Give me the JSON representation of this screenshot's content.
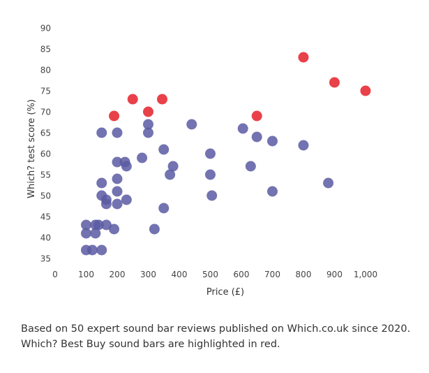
{
  "chart_data": {
    "type": "scatter",
    "xlabel": "Price (£)",
    "ylabel": "Which? test score (%)",
    "xlim": [
      0,
      1000
    ],
    "ylim": [
      35,
      90
    ],
    "x_ticks": [
      0,
      100,
      200,
      300,
      400,
      500,
      600,
      700,
      800,
      900,
      1000
    ],
    "x_tick_labels": [
      "0",
      "100",
      "200",
      "300",
      "400",
      "500",
      "600",
      "700",
      "800",
      "900",
      "1,000"
    ],
    "y_ticks": [
      35,
      40,
      45,
      50,
      55,
      60,
      65,
      70,
      75,
      80,
      85,
      90
    ],
    "y_tick_labels": [
      "35",
      "40",
      "45",
      "50",
      "55",
      "60",
      "65",
      "70",
      "75",
      "80",
      "85",
      "90"
    ],
    "grid": false,
    "series": [
      {
        "color": "#5b5ba3",
        "points": [
          [
            100,
            43
          ],
          [
            100,
            41
          ],
          [
            100,
            37
          ],
          [
            120,
            37
          ],
          [
            130,
            43
          ],
          [
            130,
            41
          ],
          [
            140,
            43
          ],
          [
            150,
            37
          ],
          [
            165,
            43
          ],
          [
            150,
            50
          ],
          [
            150,
            53
          ],
          [
            165,
            49
          ],
          [
            165,
            48
          ],
          [
            190,
            42
          ],
          [
            200,
            48
          ],
          [
            200,
            51
          ],
          [
            200,
            54
          ],
          [
            200,
            58
          ],
          [
            230,
            49
          ],
          [
            225,
            58
          ],
          [
            230,
            57
          ],
          [
            150,
            65
          ],
          [
            200,
            65
          ],
          [
            280,
            59
          ],
          [
            300,
            67
          ],
          [
            300,
            65
          ],
          [
            320,
            42
          ],
          [
            350,
            47
          ],
          [
            350,
            61
          ],
          [
            370,
            55
          ],
          [
            380,
            57
          ],
          [
            440,
            67
          ],
          [
            500,
            60
          ],
          [
            500,
            55
          ],
          [
            505,
            50
          ],
          [
            605,
            66
          ],
          [
            630,
            57
          ],
          [
            650,
            64
          ],
          [
            700,
            63
          ],
          [
            700,
            51
          ],
          [
            800,
            62
          ],
          [
            880,
            53
          ]
        ]
      },
      {
        "color": "#e8373f",
        "points": [
          [
            190,
            69
          ],
          [
            250,
            73
          ],
          [
            300,
            70
          ],
          [
            345,
            73
          ],
          [
            650,
            69
          ],
          [
            800,
            83
          ],
          [
            900,
            77
          ],
          [
            1000,
            75
          ]
        ]
      }
    ]
  },
  "caption": {
    "line1": "Based on 50 expert sound bar reviews published on Which.co.uk since 2020.",
    "line2": "Which? Best Buy sound bars are highlighted in red."
  }
}
